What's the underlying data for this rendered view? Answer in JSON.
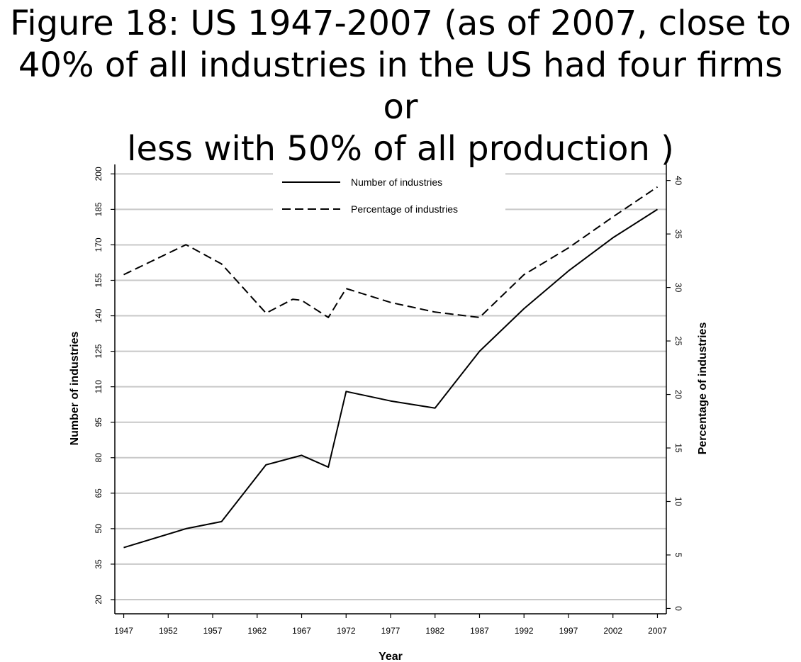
{
  "slide": {
    "title_lines": [
      "Figure 18: US 1947-2007 (as of 2007, close to",
      "40% of all industries in the US had four firms or",
      "less with 50% of all production )"
    ]
  },
  "chart_data": {
    "type": "line",
    "x_ticks": [
      "1947",
      "1952",
      "1957",
      "1962",
      "1967",
      "1972",
      "1977",
      "1982",
      "1987",
      "1992",
      "1997",
      "2002",
      "2007"
    ],
    "xlabel": "Year",
    "xlim": [
      1946,
      2008
    ],
    "y_left": {
      "label": "Number of industries",
      "lim": [
        14,
        204
      ],
      "ticks": [
        "20",
        "35",
        "50",
        "65",
        "80",
        "95",
        "110",
        "125",
        "140",
        "155",
        "170",
        "185",
        "200"
      ]
    },
    "y_right": {
      "label": "Percentage of industries",
      "lim": [
        -0.5,
        41.5
      ],
      "ticks": [
        "0",
        "5",
        "10",
        "15",
        "20",
        "25",
        "30",
        "35",
        "40"
      ]
    },
    "grid": true,
    "legend_position": "top",
    "series": [
      {
        "name": "Number of industries",
        "axis": "left",
        "style": "solid",
        "points": [
          [
            1947,
            42
          ],
          [
            1954,
            50
          ],
          [
            1958,
            53
          ],
          [
            1963,
            77
          ],
          [
            1967,
            81
          ],
          [
            1970,
            76
          ],
          [
            1972,
            108
          ],
          [
            1977,
            104
          ],
          [
            1982,
            101
          ],
          [
            1987,
            125
          ],
          [
            1992,
            143
          ],
          [
            1997,
            159
          ],
          [
            2002,
            173
          ],
          [
            2007,
            185
          ]
        ]
      },
      {
        "name": "Percentage of industries",
        "axis": "right",
        "style": "dashed",
        "points": [
          [
            1947,
            31.2
          ],
          [
            1954,
            34.0
          ],
          [
            1958,
            32.2
          ],
          [
            1963,
            27.6
          ],
          [
            1966,
            28.9
          ],
          [
            1967,
            28.8
          ],
          [
            1970,
            27.2
          ],
          [
            1972,
            29.9
          ],
          [
            1977,
            28.6
          ],
          [
            1982,
            27.7
          ],
          [
            1987,
            27.2
          ],
          [
            1992,
            31.2
          ],
          [
            1997,
            33.7
          ],
          [
            2002,
            36.6
          ],
          [
            2007,
            39.4
          ]
        ]
      }
    ]
  }
}
